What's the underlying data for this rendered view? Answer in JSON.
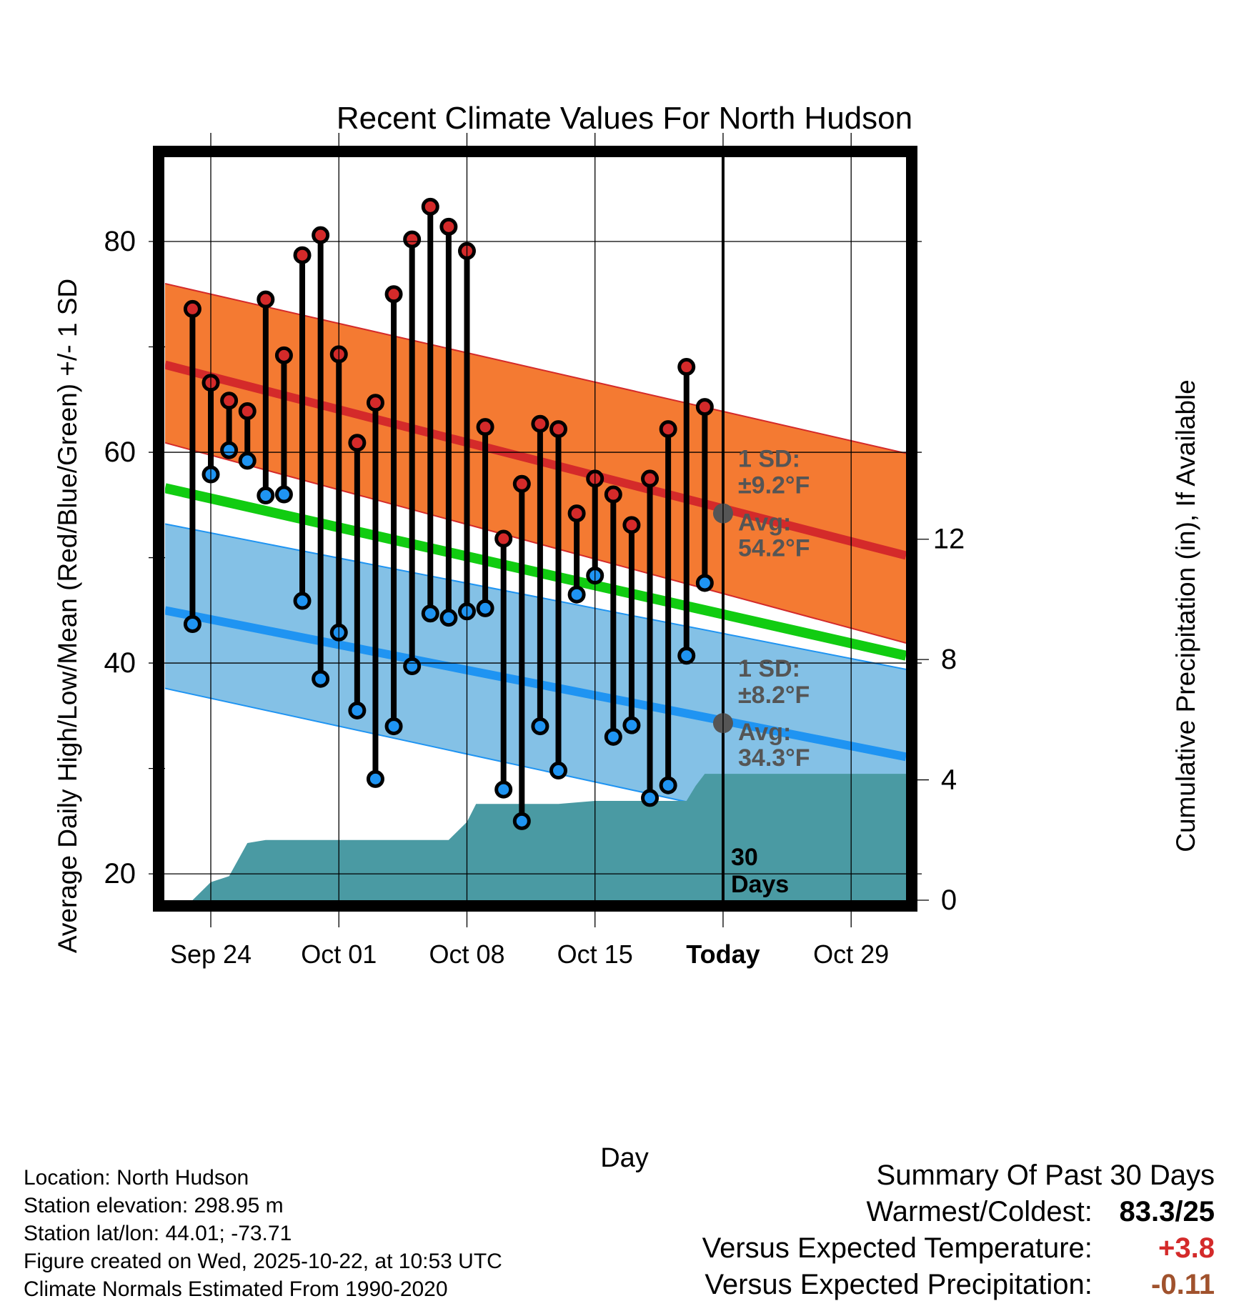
{
  "chart_data": {
    "type": "line",
    "title": "Recent Climate Values For North Hudson",
    "xlabel": "Day",
    "ylabel_left": "Average Daily High/Low/Mean (Red/Blue/Green) +/- 1 SD",
    "ylabel_right": "Cumulative Precipitation (in), If Available",
    "x_tick_labels": [
      "Sep 24",
      "Oct 01",
      "Oct 08",
      "Oct 15",
      "Today",
      "Oct 29"
    ],
    "x_tick_days": [
      2,
      9,
      16,
      23,
      30,
      37
    ],
    "xlim": [
      -0.5,
      40
    ],
    "ylim_left": [
      17.5,
      88
    ],
    "ylim_right": [
      0,
      24.7
    ],
    "y_ticks_left": [
      20,
      40,
      60,
      80
    ],
    "y_ticks_right": [
      0,
      4,
      8,
      12
    ],
    "grid": true,
    "today_label": "30\nDays",
    "colors": {
      "high": "#d42a2a",
      "low": "#1f94f2",
      "mean": "#11cc11",
      "high_band": "#f47a32",
      "low_band": "#84c1e6",
      "precip": "#4a9aa3",
      "frame": "#000000"
    },
    "normals": {
      "day_start": -0.5,
      "day_end": 40,
      "high_start": 68.3,
      "high_end": 50.2,
      "high_sd_upper_start": 76.0,
      "high_sd_upper_end": 59.9,
      "high_sd_lower_start": 60.9,
      "high_sd_lower_end": 41.9,
      "low_start": 45.0,
      "low_end": 31.1,
      "low_sd_upper_start": 53.2,
      "low_sd_upper_end": 39.4,
      "low_sd_lower_start": 37.6,
      "low_sd_lower_end": 22.3,
      "mean_start": 56.6,
      "mean_end": 40.7
    },
    "series": [
      {
        "name": "Daily High",
        "x": [
          1,
          2,
          3,
          4,
          5,
          6,
          7,
          8,
          9,
          10,
          11,
          12,
          13,
          14,
          15,
          16,
          17,
          18,
          19,
          20,
          21,
          22,
          23,
          24,
          25,
          26,
          27,
          28,
          29
        ],
        "values": [
          73.6,
          66.6,
          64.9,
          63.9,
          74.5,
          69.2,
          78.7,
          80.6,
          69.3,
          60.9,
          64.7,
          75.0,
          80.2,
          83.3,
          81.4,
          79.1,
          62.4,
          51.8,
          57.0,
          62.7,
          62.2,
          54.2,
          57.5,
          56.0,
          53.1,
          57.5,
          62.2,
          68.1,
          64.3
        ]
      },
      {
        "name": "Daily Low",
        "x": [
          1,
          2,
          3,
          4,
          5,
          6,
          7,
          8,
          9,
          10,
          11,
          12,
          13,
          14,
          15,
          16,
          17,
          18,
          19,
          20,
          21,
          22,
          23,
          24,
          25,
          26,
          27,
          28,
          29
        ],
        "values": [
          43.7,
          57.9,
          60.2,
          59.2,
          55.9,
          56.0,
          45.9,
          38.5,
          42.9,
          35.5,
          29.0,
          34.0,
          39.7,
          44.7,
          44.3,
          44.9,
          45.2,
          28.0,
          25.0,
          34.0,
          29.8,
          46.5,
          48.3,
          33.0,
          34.1,
          27.2,
          28.4,
          40.7,
          47.6
        ]
      },
      {
        "name": "Cumulative Precipitation (in)",
        "x": [
          0,
          1,
          1.5,
          2,
          3,
          4,
          5,
          6,
          15,
          16,
          16.5,
          17,
          20,
          21,
          23,
          24,
          25,
          26,
          27,
          28,
          28.5,
          29,
          30,
          31,
          40
        ],
        "values": [
          0,
          0,
          0.3,
          0.6,
          0.8,
          1.9,
          2.0,
          2.0,
          2.0,
          2.6,
          3.2,
          3.2,
          3.2,
          3.2,
          3.3,
          3.3,
          3.3,
          3.3,
          3.3,
          3.3,
          3.8,
          4.2,
          4.2,
          4.2,
          4.2
        ]
      }
    ],
    "annotations": {
      "high_sd_label": "1 SD:",
      "high_sd_value": "±9.2°F",
      "high_avg_label": "Avg:",
      "high_avg_value": "54.2°F",
      "high_avg_point": 54.2,
      "low_sd_label": "1 SD:",
      "low_sd_value": "±8.2°F",
      "low_avg_label": "Avg:",
      "low_avg_value": "34.3°F",
      "low_avg_point": 34.3
    }
  },
  "info": {
    "location": "Location: North Hudson",
    "elevation": "Station elevation: 298.95 m",
    "latlon": "Station lat/lon: 44.01; -73.71",
    "created": "Figure created on Wed, 2025-10-22, at 10:53 UTC",
    "normals": "Climate Normals Estimated From 1990-2020"
  },
  "summary": {
    "title": "Summary Of Past 30 Days",
    "warmest_label": "Warmest/Coldest:",
    "warmest_value": "83.3/25",
    "temp_label": "Versus Expected Temperature:",
    "temp_value": "+3.8",
    "temp_color": "#d42a2a",
    "precip_label": "Versus Expected Precipitation:",
    "precip_value": "-0.11",
    "precip_color": "#a0522d"
  }
}
